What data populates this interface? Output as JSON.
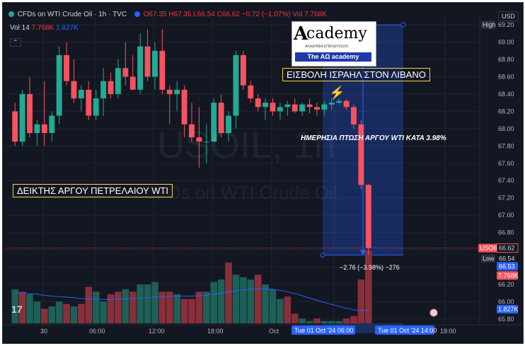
{
  "header": {
    "symbol": "CFDs on WTI Crude Oil · 1h · TVC",
    "ohlc": "O67.35 H67.36 L66.54 C66.62 −0.72 (−1.07%)",
    "vol_badge": "Vol 7.768K",
    "vol_row": "Vol 14",
    "vol_val1": "7.768K",
    "vol_val2": "1.827K",
    "currency": "USD"
  },
  "watermark": {
    "ticker": "USOIL, 1h",
    "name": "CFDs on WTI Crude Oil"
  },
  "annotations": {
    "event": "ΕΙΣΒΟΛΗ ΙΣΡΑΗΛ ΣΤΟΝ ΛΙΒΑΝΟ",
    "drop": "ΗΜΕΡΗΣΙΑ ΠΤΩΣΗ ΑΡΓΟΥ WTI ΚΑΤΑ 3.98%",
    "index": "ΔΕΙΚΤΗΣ ΑΡΓΟΥ ΠΕΤΡΕΛΑΙΟΥ WTI",
    "measure": "−2.76 (−3.98%) −276",
    "flash": "⚡"
  },
  "logo": {
    "mark": "A",
    "name": "cademy",
    "sub": "ΑΚΑΔΗΜΙΑ ΕΠΕΝΔΥΣΕΩΝ",
    "bar": "The AΩ academy"
  },
  "price_axis": {
    "labels": [
      "69.20",
      "69.00",
      "68.80",
      "68.60",
      "68.40",
      "68.20",
      "68.00",
      "67.80",
      "67.60",
      "67.40",
      "67.20",
      "67.00",
      "66.80",
      "66.60",
      "66.40",
      "66.20",
      "66.00",
      "65.80"
    ],
    "high_label": "High",
    "low_label": "Low",
    "usoil_tag": "USOIL",
    "usoil_price": "66.62",
    "low_price": "66.54",
    "price_653": "66.53",
    "vol_tag": "7.768K",
    "vol_tag2": "1.827K"
  },
  "time_axis": {
    "labels": [
      "30",
      "06:00",
      "12:00",
      "18:00",
      "Oct",
      "18:00"
    ],
    "range_start": "Tue 01 Oct '24  06:00",
    "range_end": "Tue 01 Oct '24  14:00"
  },
  "colors": {
    "up": "#22ab94",
    "down": "#f7525f",
    "vol_up": "#1e5f57",
    "vol_down": "#8a2f3a",
    "ma": "#2962ff",
    "range": "#2962ff",
    "highlight": "#f5d742"
  },
  "chart_data": {
    "type": "candlestick",
    "title": "CFDs on WTI Crude Oil · 1h · TVC",
    "ylim": [
      65.75,
      69.25
    ],
    "last_price": 66.62,
    "range_high": 69.2,
    "range_low": 66.54,
    "ohlc": [
      [
        68.2,
        68.3,
        67.8,
        67.85
      ],
      [
        67.85,
        68.45,
        67.8,
        68.4
      ],
      [
        68.4,
        68.6,
        67.9,
        67.95
      ],
      [
        67.95,
        68.1,
        67.8,
        68.05
      ],
      [
        68.05,
        68.55,
        67.8,
        67.95
      ],
      [
        67.95,
        68.2,
        67.85,
        68.15
      ],
      [
        68.15,
        68.95,
        68.05,
        68.85
      ],
      [
        68.85,
        69.0,
        68.5,
        68.55
      ],
      [
        68.55,
        68.8,
        68.3,
        68.35
      ],
      [
        68.35,
        68.5,
        68.2,
        68.45
      ],
      [
        68.45,
        68.55,
        68.1,
        68.15
      ],
      [
        68.15,
        68.45,
        68.1,
        68.35
      ],
      [
        68.35,
        68.7,
        68.15,
        68.55
      ],
      [
        68.55,
        68.65,
        68.35,
        68.4
      ],
      [
        68.4,
        68.8,
        68.35,
        68.7
      ],
      [
        68.7,
        69.0,
        68.5,
        68.6
      ],
      [
        68.6,
        68.85,
        68.45,
        68.45
      ],
      [
        68.45,
        69.1,
        68.4,
        68.95
      ],
      [
        68.95,
        69.15,
        68.55,
        68.6
      ],
      [
        68.6,
        69.0,
        68.45,
        68.9
      ],
      [
        68.9,
        69.15,
        68.4,
        68.45
      ],
      [
        68.45,
        68.5,
        68.05,
        68.4
      ],
      [
        68.4,
        68.55,
        68.2,
        68.45
      ],
      [
        68.45,
        68.5,
        67.9,
        68.05
      ],
      [
        68.05,
        68.3,
        67.85,
        67.9
      ],
      [
        67.9,
        68.25,
        67.55,
        67.85
      ],
      [
        67.85,
        68.05,
        67.6,
        67.85
      ],
      [
        67.85,
        68.35,
        67.85,
        68.3
      ],
      [
        68.3,
        68.4,
        67.9,
        67.95
      ],
      [
        67.95,
        68.2,
        67.85,
        68.15
      ],
      [
        68.15,
        68.9,
        68.0,
        68.85
      ],
      [
        68.85,
        68.9,
        68.45,
        68.5
      ],
      [
        68.5,
        68.55,
        68.3,
        68.35
      ],
      [
        68.35,
        68.4,
        68.2,
        68.25
      ],
      [
        68.25,
        68.35,
        68.1,
        68.3
      ],
      [
        68.3,
        68.35,
        68.15,
        68.2
      ],
      [
        68.2,
        68.3,
        68.1,
        68.25
      ],
      [
        68.25,
        68.32,
        68.15,
        68.28
      ],
      [
        68.28,
        68.35,
        68.18,
        68.2
      ],
      [
        68.2,
        68.3,
        68.15,
        68.28
      ],
      [
        68.28,
        68.35,
        68.18,
        68.25
      ],
      [
        68.25,
        68.3,
        68.15,
        68.22
      ],
      [
        68.22,
        68.32,
        68.15,
        68.28
      ],
      [
        68.28,
        68.35,
        68.22,
        68.3
      ],
      [
        68.3,
        68.35,
        68.28,
        68.32
      ],
      [
        68.32,
        68.34,
        68.22,
        68.25
      ],
      [
        68.25,
        68.28,
        68.0,
        68.05
      ],
      [
        68.05,
        68.1,
        67.3,
        67.35
      ],
      [
        67.35,
        67.36,
        66.54,
        66.62
      ]
    ],
    "volume": [
      [
        1.4,
        "up"
      ],
      [
        1.3,
        "down"
      ],
      [
        1.2,
        "up"
      ],
      [
        0.9,
        "up"
      ],
      [
        0.6,
        "down"
      ],
      [
        0.7,
        "up"
      ],
      [
        0.9,
        "up"
      ],
      [
        0.8,
        "down"
      ],
      [
        0.7,
        "up"
      ],
      [
        0.8,
        "down"
      ],
      [
        1.5,
        "down"
      ],
      [
        1.3,
        "up"
      ],
      [
        0.9,
        "up"
      ],
      [
        1.2,
        "down"
      ],
      [
        1.3,
        "down"
      ],
      [
        1.4,
        "up"
      ],
      [
        1.3,
        "down"
      ],
      [
        1.6,
        "up"
      ],
      [
        1.6,
        "up"
      ],
      [
        1.7,
        "up"
      ],
      [
        1.3,
        "down"
      ],
      [
        1.3,
        "down"
      ],
      [
        1.2,
        "up"
      ],
      [
        1.0,
        "down"
      ],
      [
        1.0,
        "down"
      ],
      [
        1.3,
        "down"
      ],
      [
        1.3,
        "up"
      ],
      [
        1.7,
        "up"
      ],
      [
        1.8,
        "up"
      ],
      [
        2.5,
        "down"
      ],
      [
        2.0,
        "up"
      ],
      [
        1.9,
        "up"
      ],
      [
        1.8,
        "up"
      ],
      [
        2.0,
        "down"
      ],
      [
        1.6,
        "up"
      ],
      [
        1.4,
        "up"
      ],
      [
        1.0,
        "up"
      ],
      [
        1.1,
        "down"
      ],
      [
        0.4,
        "down"
      ],
      [
        0.2,
        "up"
      ],
      [
        0.1,
        "up"
      ],
      [
        0.2,
        "down"
      ],
      [
        0.1,
        "up"
      ],
      [
        0.1,
        "up"
      ],
      [
        0.1,
        "up"
      ],
      [
        0.2,
        "down"
      ],
      [
        0.3,
        "down"
      ],
      [
        1.8,
        "down"
      ],
      [
        3.0,
        "down"
      ]
    ],
    "vol_ma": [
      1.25,
      1.24,
      1.22,
      1.2,
      1.15,
      1.12,
      1.1,
      1.08,
      1.05,
      1.02,
      1.0,
      1.0,
      0.98,
      0.98,
      1.0,
      1.0,
      1.02,
      1.04,
      1.06,
      1.08,
      1.08,
      1.1,
      1.12,
      1.12,
      1.12,
      1.14,
      1.16,
      1.2,
      1.24,
      1.3,
      1.34,
      1.38,
      1.4,
      1.42,
      1.42,
      1.4,
      1.36,
      1.3,
      1.22,
      1.14,
      1.04,
      0.95,
      0.86,
      0.78,
      0.7,
      0.62,
      0.56,
      0.52,
      0.55
    ]
  }
}
